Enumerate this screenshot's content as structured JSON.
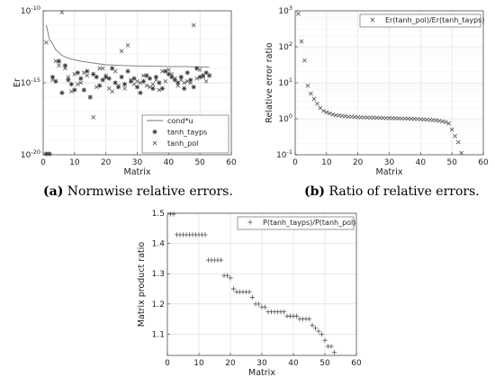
{
  "chart_data": [
    {
      "id": "a",
      "type": "scatter",
      "caption_label": "(a)",
      "caption_text": "Normwise relative errors.",
      "xlabel": "Matrix",
      "ylabel": "Er",
      "xlim": [
        0,
        60
      ],
      "ylim_log10": [
        -20,
        -10
      ],
      "xticks": [
        "0",
        "10",
        "20",
        "30",
        "40",
        "50",
        "60"
      ],
      "yticks": [
        "10^-20",
        "10^-15",
        "10^-10"
      ],
      "log_y": true,
      "grid": true,
      "legend_position": "bottom-right",
      "series": [
        {
          "name": "cond*u",
          "style": "line",
          "x": [
            1,
            2,
            3,
            4,
            5,
            6,
            7,
            8,
            10,
            12,
            15,
            20,
            25,
            30,
            35,
            40,
            45,
            50,
            53
          ],
          "log10_y": [
            -11.0,
            -12.0,
            -12.3,
            -12.7,
            -12.9,
            -13.1,
            -13.2,
            -13.3,
            -13.4,
            -13.5,
            -13.6,
            -13.75,
            -13.8,
            -13.83,
            -13.85,
            -13.87,
            -13.87,
            -13.9,
            -13.9
          ]
        },
        {
          "name": "tanh_tayps",
          "style": "asterisk",
          "x": [
            1,
            2,
            3,
            4,
            5,
            6,
            7,
            8,
            9,
            10,
            11,
            12,
            13,
            14,
            15,
            16,
            17,
            18,
            19,
            20,
            21,
            22,
            23,
            24,
            25,
            26,
            27,
            28,
            29,
            30,
            31,
            32,
            33,
            34,
            35,
            36,
            37,
            38,
            39,
            40,
            41,
            42,
            43,
            44,
            45,
            46,
            47,
            48,
            49,
            50,
            51,
            52,
            53
          ],
          "log10_y": [
            -20,
            -20,
            -14.6,
            -14.9,
            -13.5,
            -15.7,
            -13.8,
            -14.8,
            -15.1,
            -15.5,
            -14.3,
            -14.7,
            -15.5,
            -14.2,
            -16.0,
            -14.4,
            -14.6,
            -15.2,
            -14.8,
            -14.6,
            -14.7,
            -14.0,
            -15.0,
            -15.3,
            -14.6,
            -15.1,
            -14.2,
            -14.9,
            -14.7,
            -15.3,
            -15.7,
            -14.9,
            -14.5,
            -14.7,
            -15.4,
            -14.6,
            -15.0,
            -15.4,
            -14.2,
            -14.4,
            -14.6,
            -14.8,
            -15.0,
            -14.6,
            -15.4,
            -14.3,
            -14.8,
            -15.3,
            -14.0,
            -14.6,
            -14.5,
            -14.3,
            -14.5
          ]
        },
        {
          "name": "tanh_pol",
          "style": "x",
          "x": [
            1,
            3,
            4,
            5,
            6,
            7,
            8,
            9,
            10,
            11,
            12,
            13,
            14,
            15,
            16,
            17,
            18,
            19,
            20,
            21,
            22,
            23,
            24,
            25,
            26,
            27,
            28,
            29,
            30,
            31,
            32,
            33,
            34,
            35,
            36,
            37,
            38,
            39,
            40,
            41,
            42,
            43,
            44,
            45,
            46,
            47,
            48,
            49,
            50,
            51,
            52,
            53
          ],
          "log10_y": [
            -12.2,
            -14.8,
            -13.5,
            -13.8,
            -10.1,
            -14.0,
            -14.6,
            -15.6,
            -14.4,
            -15.1,
            -15.0,
            -14.3,
            -14.5,
            -16.0,
            -17.4,
            -15.3,
            -14.0,
            -14.0,
            -14.5,
            -15.4,
            -15.6,
            -14.2,
            -15.2,
            -12.8,
            -15.4,
            -12.4,
            -14.8,
            -15.1,
            -14.9,
            -15.0,
            -14.5,
            -15.2,
            -15.3,
            -15.1,
            -14.8,
            -15.5,
            -14.2,
            -14.9,
            -14.1,
            -14.4,
            -14.7,
            -15.2,
            -14.8,
            -15.0,
            -14.9,
            -15.0,
            -11.0,
            -14.7,
            -14.1,
            -14.6,
            -14.9,
            -14.5
          ]
        }
      ]
    },
    {
      "id": "b",
      "type": "scatter",
      "caption_label": "(b)",
      "caption_text": "Ratio of relative errors.",
      "xlabel": "Matrix",
      "ylabel": "Relative error ratio",
      "xlim": [
        0,
        60
      ],
      "ylim_log10": [
        -1,
        3
      ],
      "xticks": [
        "0",
        "10",
        "20",
        "30",
        "40",
        "50",
        "60"
      ],
      "yticks": [
        "10^-1",
        "10^0",
        "10^1",
        "10^2",
        "10^3"
      ],
      "log_y": true,
      "grid": true,
      "legend_position": "top-right",
      "series": [
        {
          "name": "Er(tanh_pol)/Er(tanh_tayps)",
          "style": "x",
          "x": [
            1,
            2,
            3,
            4,
            5,
            6,
            7,
            8,
            9,
            10,
            11,
            12,
            13,
            14,
            15,
            16,
            17,
            18,
            19,
            20,
            21,
            22,
            23,
            24,
            25,
            26,
            27,
            28,
            29,
            30,
            31,
            32,
            33,
            34,
            35,
            36,
            37,
            38,
            39,
            40,
            41,
            42,
            43,
            44,
            45,
            46,
            47,
            48,
            49,
            50,
            51,
            52,
            53
          ],
          "log10_y": [
            2.92,
            2.15,
            1.62,
            0.92,
            0.7,
            0.55,
            0.42,
            0.3,
            0.22,
            0.18,
            0.15,
            0.12,
            0.1,
            0.09,
            0.08,
            0.07,
            0.06,
            0.055,
            0.05,
            0.045,
            0.04,
            0.038,
            0.035,
            0.032,
            0.03,
            0.028,
            0.025,
            0.022,
            0.02,
            0.018,
            0.015,
            0.012,
            0.01,
            0.008,
            0.005,
            0.003,
            0.0,
            -0.003,
            -0.008,
            -0.012,
            -0.018,
            -0.024,
            -0.03,
            -0.035,
            -0.045,
            -0.06,
            -0.075,
            -0.09,
            -0.13,
            -0.3,
            -0.48,
            -0.65,
            -0.95
          ]
        }
      ]
    },
    {
      "id": "c",
      "type": "scatter",
      "caption_label": "",
      "caption_text": "",
      "xlabel": "Matrix",
      "ylabel": "Matrix product ratio",
      "xlim": [
        0,
        60
      ],
      "ylim": [
        1.03,
        1.5
      ],
      "xticks": [
        "0",
        "10",
        "20",
        "30",
        "40",
        "50",
        "60"
      ],
      "yticks": [
        "1.1",
        "1.2",
        "1.3",
        "1.4",
        "1.5"
      ],
      "yticks_values": [
        1.1,
        1.2,
        1.3,
        1.4,
        1.5
      ],
      "log_y": false,
      "grid": true,
      "legend_position": "top-right",
      "series": [
        {
          "name": "P(tanh_tayps)/P(tanh_pol)",
          "style": "plus",
          "x": [
            1,
            2,
            3,
            4,
            5,
            6,
            7,
            8,
            9,
            10,
            11,
            12,
            13,
            14,
            15,
            16,
            17,
            18,
            19,
            20,
            21,
            22,
            23,
            24,
            25,
            26,
            27,
            28,
            29,
            30,
            31,
            32,
            33,
            34,
            35,
            36,
            37,
            38,
            39,
            40,
            41,
            42,
            43,
            44,
            45,
            46,
            47,
            48,
            49,
            50,
            51,
            52,
            53
          ],
          "y": [
            1.5,
            1.5,
            1.429,
            1.429,
            1.429,
            1.429,
            1.429,
            1.429,
            1.429,
            1.429,
            1.429,
            1.429,
            1.345,
            1.345,
            1.345,
            1.345,
            1.345,
            1.294,
            1.294,
            1.286,
            1.25,
            1.24,
            1.24,
            1.24,
            1.24,
            1.24,
            1.222,
            1.2,
            1.2,
            1.19,
            1.19,
            1.174,
            1.174,
            1.174,
            1.174,
            1.174,
            1.174,
            1.16,
            1.16,
            1.16,
            1.16,
            1.15,
            1.15,
            1.15,
            1.15,
            1.13,
            1.12,
            1.11,
            1.1,
            1.08,
            1.06,
            1.06,
            1.04
          ]
        }
      ]
    }
  ]
}
